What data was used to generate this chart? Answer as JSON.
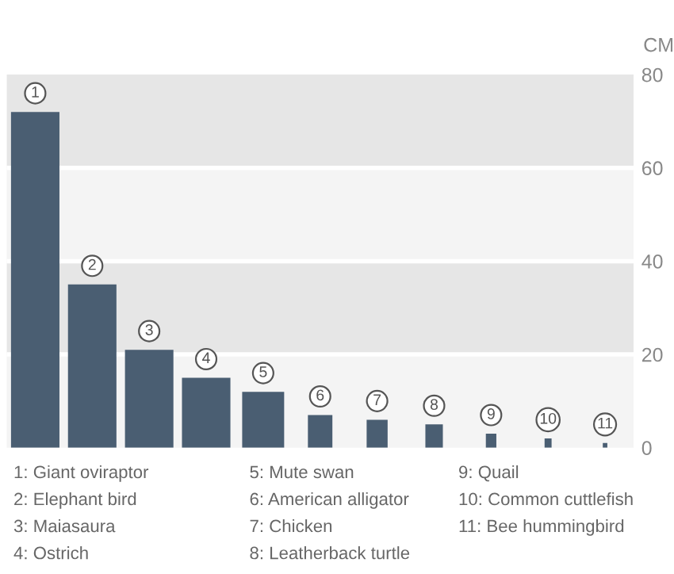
{
  "chart_data": {
    "type": "bar",
    "ylabel": "CM",
    "categories": [
      "1",
      "2",
      "3",
      "4",
      "5",
      "6",
      "7",
      "8",
      "9",
      "10",
      "11"
    ],
    "values": [
      72,
      35,
      21,
      15,
      12,
      7,
      6,
      5,
      3,
      2,
      1
    ],
    "color": "#4a5e72",
    "ylim": [
      0,
      80
    ],
    "yticks": [
      0,
      20,
      40,
      60,
      80
    ],
    "grid": "y",
    "annotations": [
      "1: Giant oviraptor",
      "2: Elephant bird",
      "3: Maiasaura",
      "4: Ostrich",
      "5: Mute swan",
      "6: American alligator",
      "7: Chicken",
      "8: Leatherback turtle",
      "9: Quail",
      "10: Common cuttlefish",
      "11: Bee hummingbird"
    ]
  }
}
